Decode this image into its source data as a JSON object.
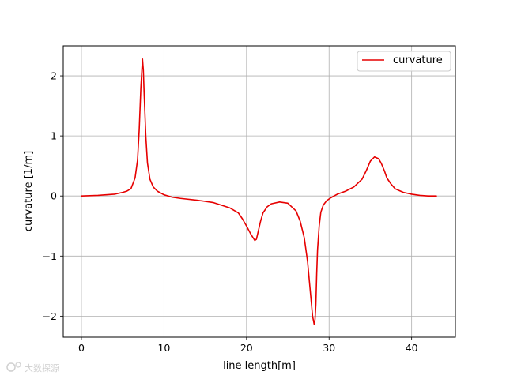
{
  "chart_data": {
    "type": "line",
    "title": "",
    "xlabel": "line length[m]",
    "ylabel": "curvature [1/m]",
    "xlim": [
      -2.2,
      45.3
    ],
    "ylim": [
      -2.35,
      2.5
    ],
    "xticks": [
      0,
      10,
      20,
      30,
      40
    ],
    "yticks": [
      2,
      1,
      0,
      -1,
      -2
    ],
    "xtick_labels": [
      "0",
      "10",
      "20",
      "30",
      "40"
    ],
    "ytick_labels": [
      "2",
      "1",
      "0",
      "−1",
      "−2"
    ],
    "grid": true,
    "legend_position": "top-right",
    "series": [
      {
        "name": "curvature",
        "color": "#e60000",
        "x": [
          0,
          2,
          4,
          5,
          5.5,
          6,
          6.5,
          6.8,
          7.0,
          7.2,
          7.4,
          7.5,
          7.6,
          7.8,
          8.0,
          8.3,
          8.7,
          9.2,
          10,
          11,
          12,
          14,
          16,
          18,
          19,
          19.5,
          20,
          20.5,
          21,
          21.2,
          21.4,
          21.7,
          22,
          22.5,
          23,
          24,
          25,
          26,
          26.5,
          27,
          27.4,
          27.8,
          28.0,
          28.2,
          28.3,
          28.4,
          28.5,
          28.6,
          28.8,
          29.0,
          29.3,
          29.7,
          30.2,
          31,
          32,
          33,
          34,
          34.5,
          35,
          35.5,
          36,
          36.3,
          36.7,
          37,
          37.5,
          38,
          39,
          40,
          41,
          42,
          43
        ],
        "y": [
          0,
          0.01,
          0.03,
          0.06,
          0.08,
          0.12,
          0.3,
          0.6,
          1.1,
          1.8,
          2.28,
          2.1,
          1.7,
          1.0,
          0.55,
          0.28,
          0.15,
          0.08,
          0.02,
          -0.02,
          -0.04,
          -0.07,
          -0.11,
          -0.2,
          -0.28,
          -0.38,
          -0.5,
          -0.63,
          -0.74,
          -0.72,
          -0.6,
          -0.42,
          -0.28,
          -0.18,
          -0.13,
          -0.1,
          -0.12,
          -0.25,
          -0.42,
          -0.7,
          -1.1,
          -1.7,
          -2.0,
          -2.14,
          -2.05,
          -1.8,
          -1.3,
          -0.9,
          -0.5,
          -0.27,
          -0.15,
          -0.08,
          -0.03,
          0.03,
          0.08,
          0.15,
          0.28,
          0.42,
          0.58,
          0.65,
          0.62,
          0.55,
          0.42,
          0.3,
          0.2,
          0.12,
          0.06,
          0.03,
          0.01,
          0.0,
          0.0
        ]
      }
    ]
  },
  "legend": {
    "label": "curvature"
  },
  "watermark": {
    "text": "大数探源"
  }
}
